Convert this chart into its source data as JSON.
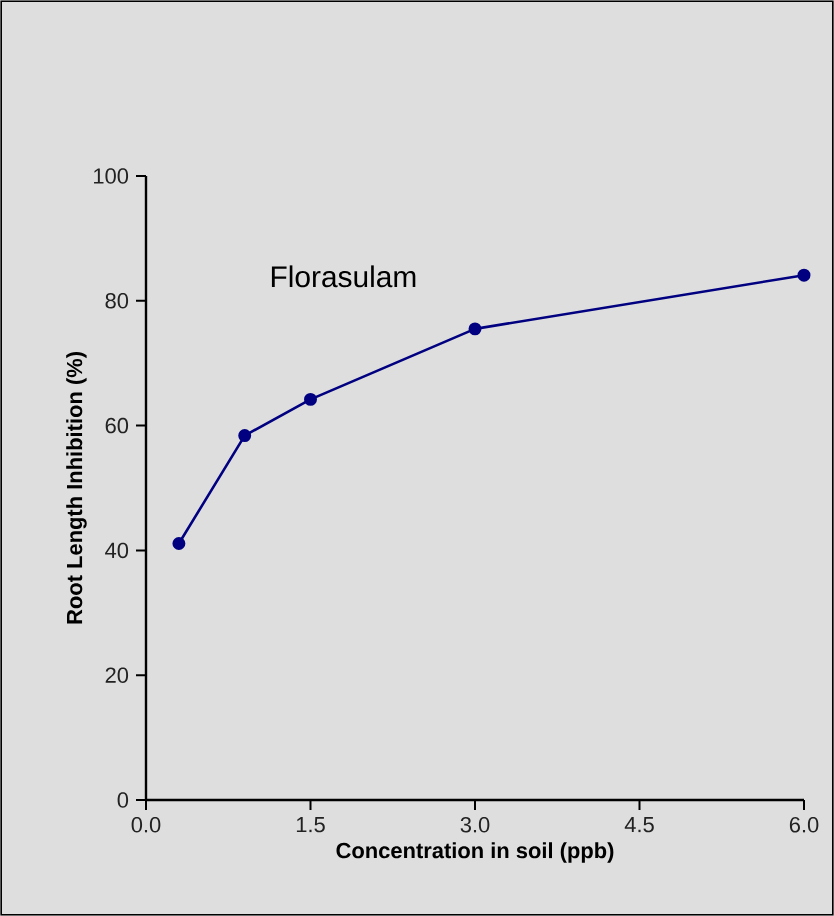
{
  "chart_data": {
    "type": "line",
    "title": "Florasulam",
    "xlabel": "Concentration in soil (ppb)",
    "ylabel": "Root Length Inhibition (%)",
    "x": [
      0.3,
      0.9,
      1.5,
      3.0,
      6.0
    ],
    "series": [
      {
        "color": "#000080",
        "values": [
          41.1,
          58.4,
          64.2,
          75.5,
          84.1
        ]
      }
    ],
    "xlim": [
      0,
      6
    ],
    "xticks": [
      {
        "value": 0,
        "label": "0.0"
      },
      {
        "value": 1.5,
        "label": "1.5"
      },
      {
        "value": 3,
        "label": "3.0"
      },
      {
        "value": 4.5,
        "label": "4.5"
      },
      {
        "value": 6,
        "label": "6.0"
      }
    ],
    "ylim": [
      0,
      100
    ],
    "yticks": [
      0,
      20,
      40,
      60,
      80,
      100
    ],
    "marker": "circle",
    "line_style": "solid"
  }
}
